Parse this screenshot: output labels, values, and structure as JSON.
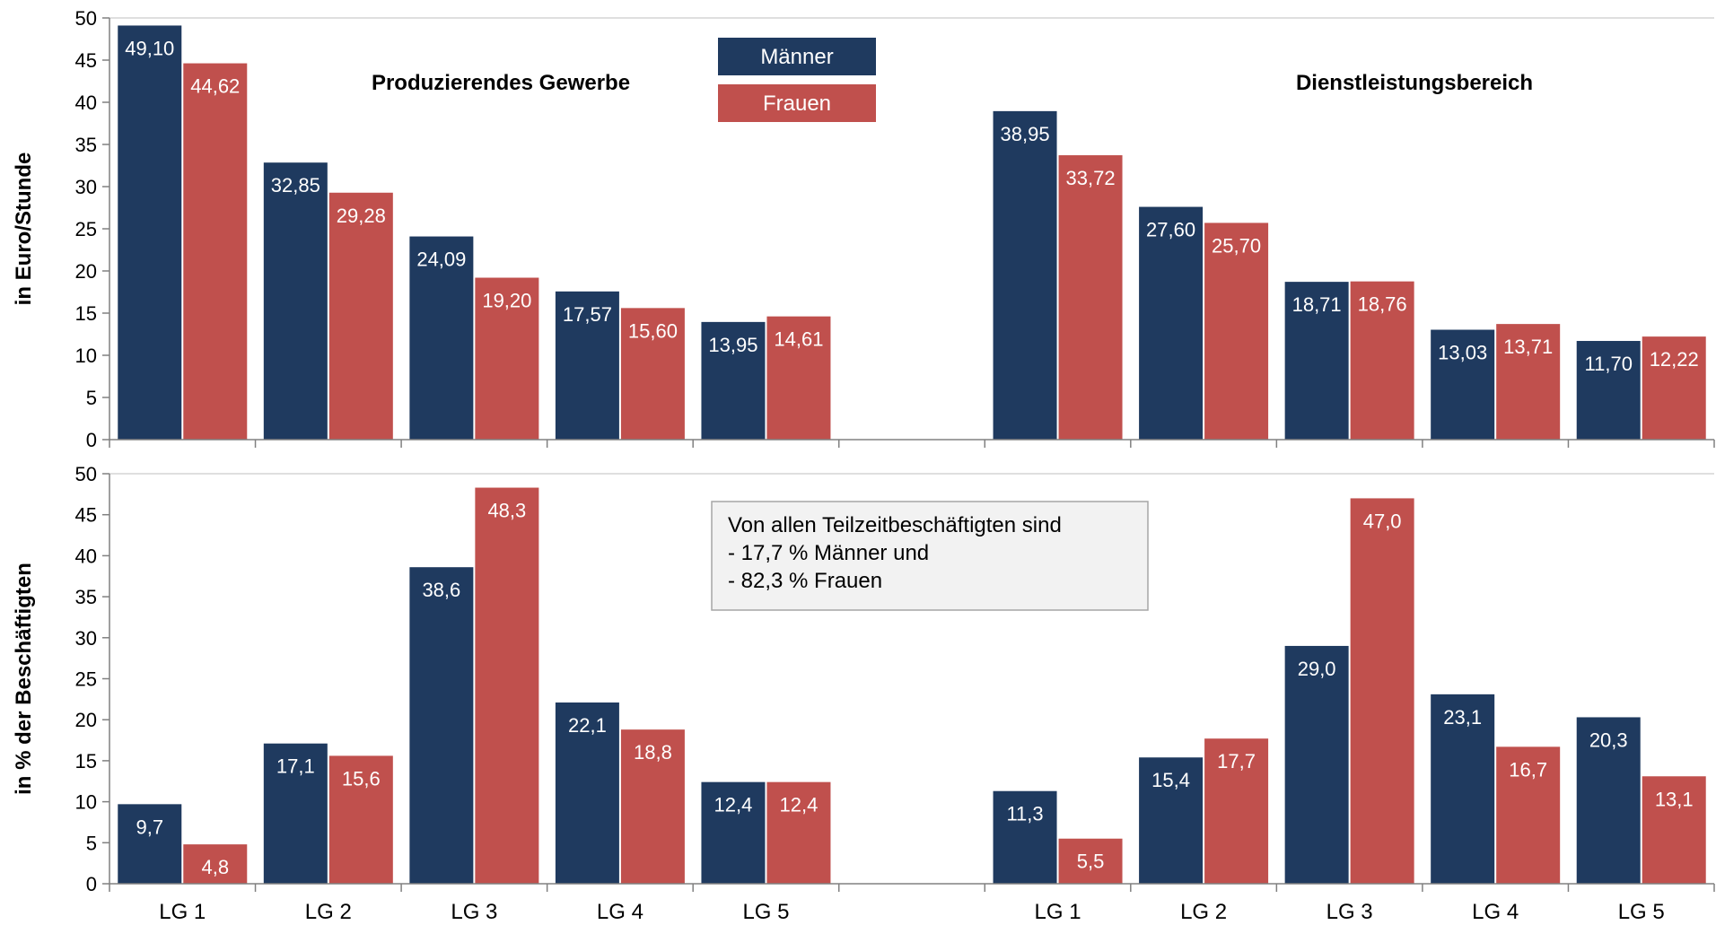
{
  "colors": {
    "maenner": "#1f3a5f",
    "frauen": "#c0504d"
  },
  "legend": {
    "items": [
      "Männer",
      "Frauen"
    ]
  },
  "chart_data": [
    {
      "type": "bar",
      "ylabel": "in Euro/Stunde",
      "ylim": [
        0,
        50
      ],
      "yticks": [
        0,
        5,
        10,
        15,
        20,
        25,
        30,
        35,
        40,
        45,
        50
      ],
      "groups": [
        {
          "title": "Produzierendes Gewerbe",
          "categories": [
            "LG 1",
            "LG 2",
            "LG 3",
            "LG 4",
            "LG 5"
          ]
        },
        {
          "title": "Dienstleistungsbereich",
          "categories": [
            "LG 1",
            "LG 2",
            "LG 3",
            "LG 4",
            "LG 5"
          ]
        }
      ],
      "series": [
        {
          "name": "Männer",
          "values": [
            49.1,
            32.85,
            24.09,
            17.57,
            13.95,
            38.95,
            27.6,
            18.71,
            13.03,
            11.7
          ],
          "labels": [
            "49,10",
            "32,85",
            "24,09",
            "17,57",
            "13,95",
            "38,95",
            "27,60",
            "18,71",
            "13,03",
            "11,70"
          ]
        },
        {
          "name": "Frauen",
          "values": [
            44.62,
            29.28,
            19.2,
            15.6,
            14.61,
            33.72,
            25.7,
            18.76,
            13.71,
            12.22
          ],
          "labels": [
            "44,62",
            "29,28",
            "19,20",
            "15,60",
            "14,61",
            "33,72",
            "25,70",
            "18,76",
            "13,71",
            "12,22"
          ]
        }
      ]
    },
    {
      "type": "bar",
      "ylabel": "in % der Beschäftigten",
      "ylim": [
        0,
        50
      ],
      "yticks": [
        0,
        5,
        10,
        15,
        20,
        25,
        30,
        35,
        40,
        45,
        50
      ],
      "categories": [
        "LG 1",
        "LG 2",
        "LG 3",
        "LG 4",
        "LG 5",
        "LG 1",
        "LG 2",
        "LG 3",
        "LG 4",
        "LG 5"
      ],
      "series": [
        {
          "name": "Männer",
          "values": [
            9.7,
            17.1,
            38.6,
            22.1,
            12.4,
            11.3,
            15.4,
            29.0,
            23.1,
            20.3
          ],
          "labels": [
            "9,7",
            "17,1",
            "38,6",
            "22,1",
            "12,4",
            "11,3",
            "15,4",
            "29,0",
            "23,1",
            "20,3"
          ]
        },
        {
          "name": "Frauen",
          "values": [
            4.8,
            15.6,
            48.3,
            18.8,
            12.4,
            5.5,
            17.7,
            47.0,
            16.7,
            13.1
          ],
          "labels": [
            "4,8",
            "15,6",
            "48,3",
            "18,8",
            "12,4",
            "5,5",
            "17,7",
            "47,0",
            "16,7",
            "13,1"
          ]
        }
      ],
      "annotation": [
        "Von allen Teilzeitbeschäftigten sind",
        "- 17,7 % Männer und",
        "- 82,3 % Frauen"
      ]
    }
  ]
}
